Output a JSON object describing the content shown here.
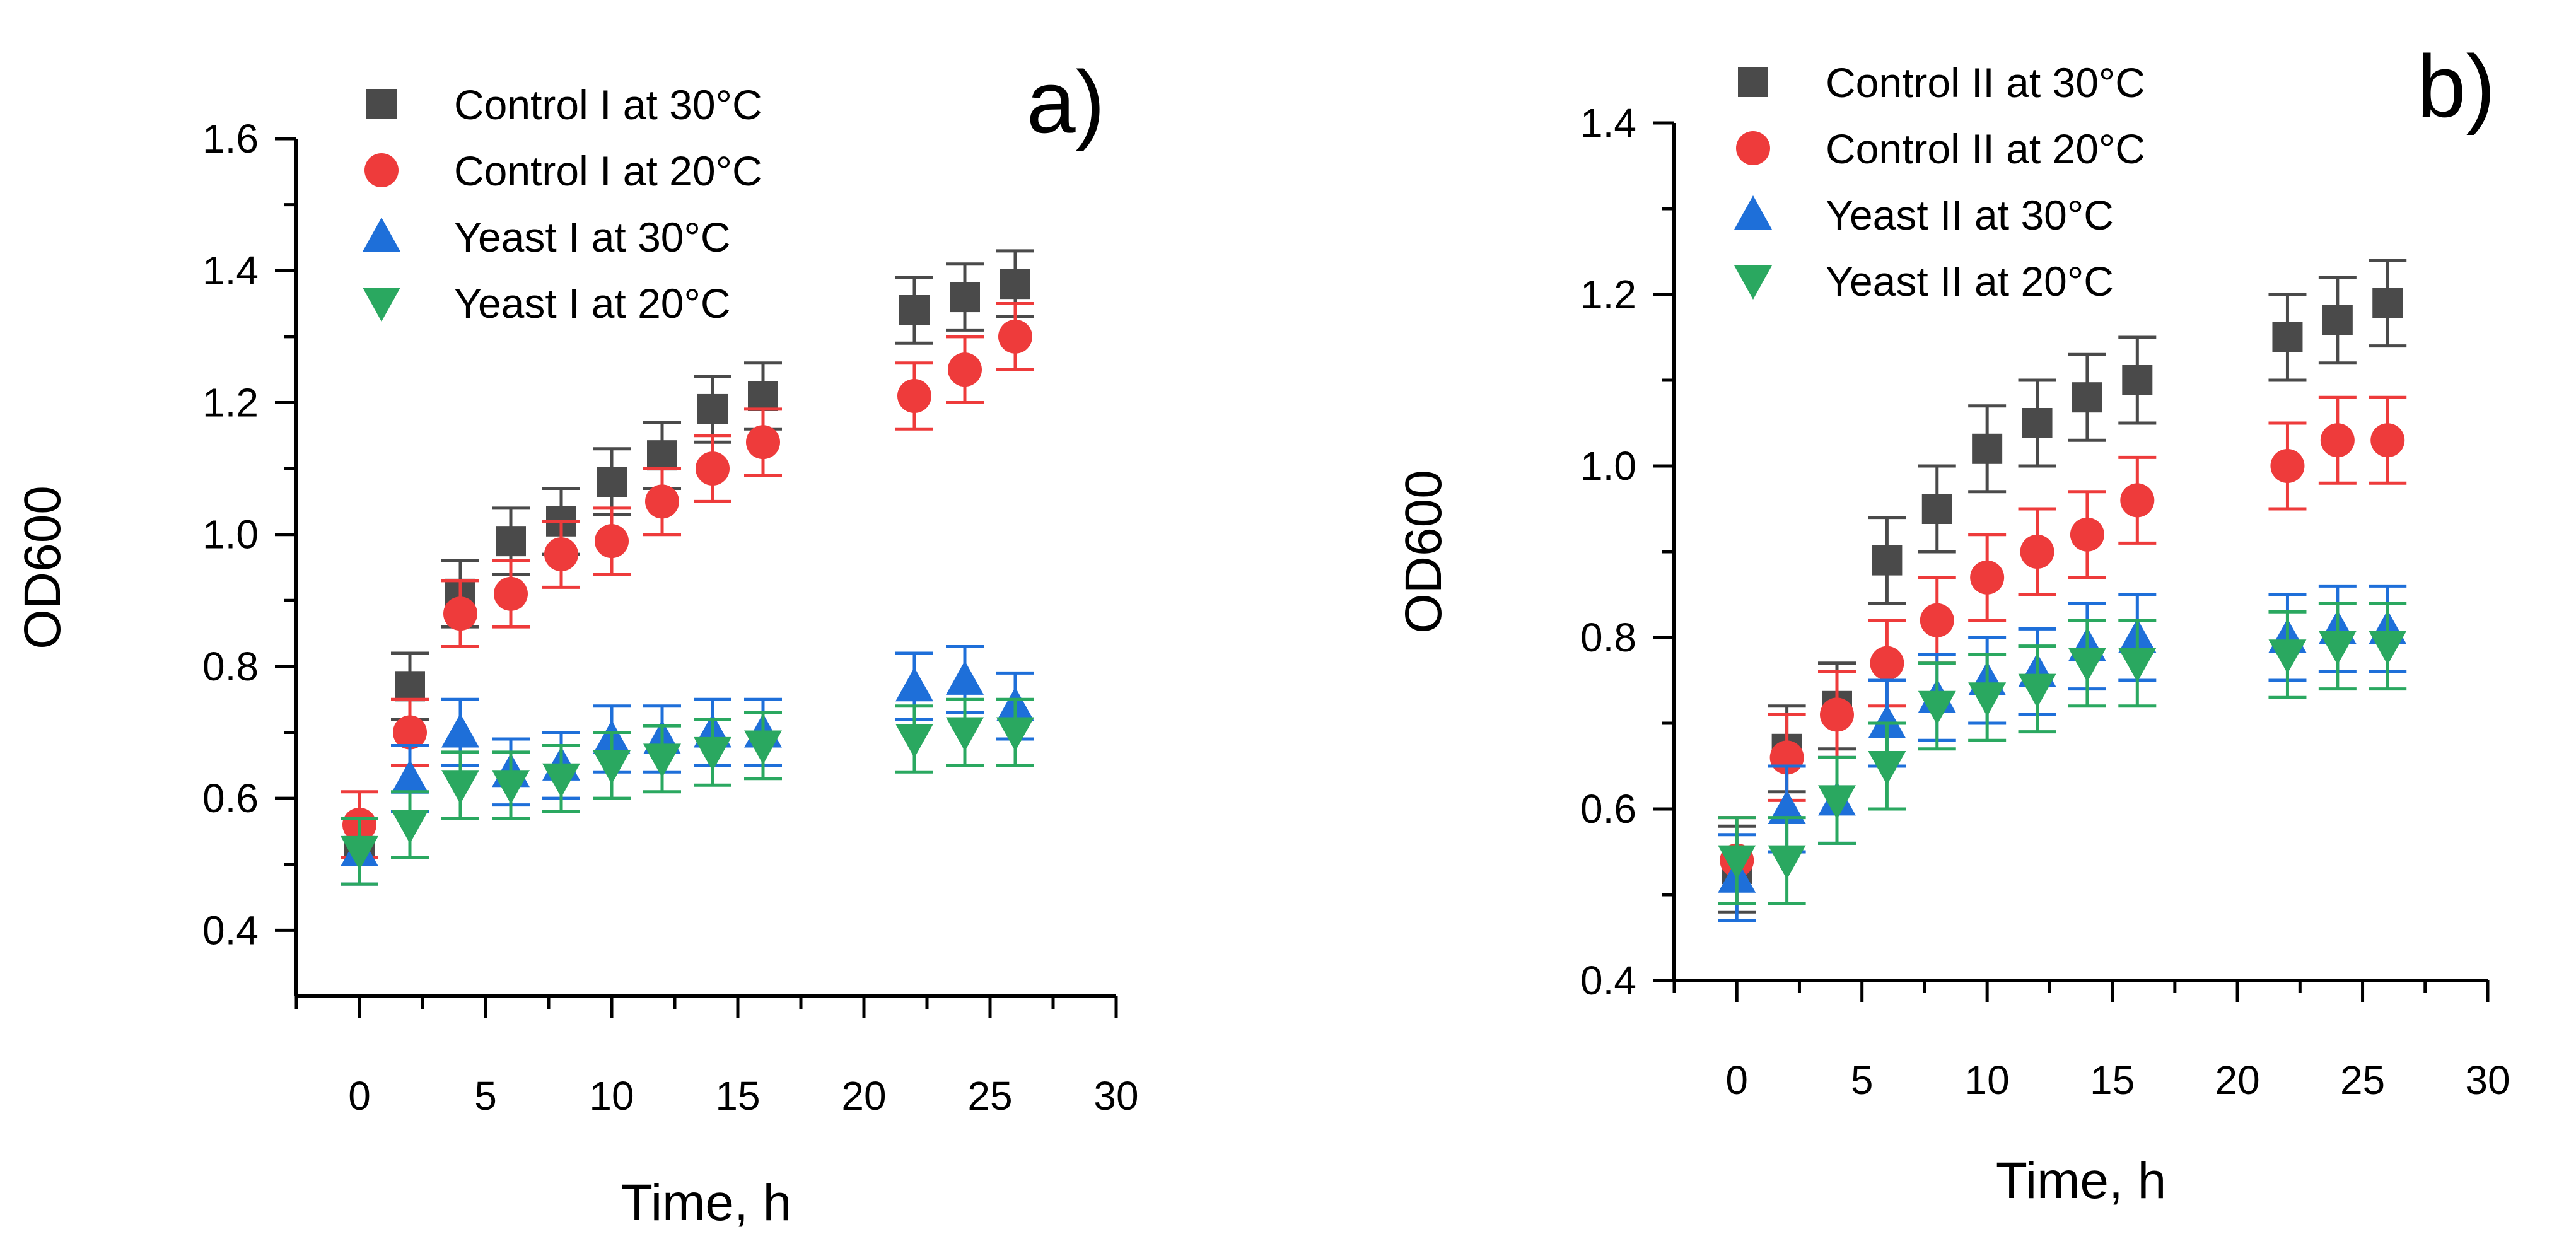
{
  "chart_data": [
    {
      "type": "scatter",
      "panel_label": "a)",
      "xlabel": "Time, h",
      "ylabel": "OD600",
      "xlim": [
        -2.5,
        30
      ],
      "ylim": [
        0.3,
        1.6
      ],
      "xticks": [
        0,
        5,
        10,
        15,
        20,
        25,
        30
      ],
      "xtick_labels": [
        "0",
        "5",
        "10",
        "15",
        "20",
        "25",
        "30"
      ],
      "yticks": [
        0.4,
        0.6,
        0.8,
        1.0,
        1.2,
        1.4,
        1.6
      ],
      "ytick_labels": [
        "0.4",
        "0.6",
        "0.8",
        "1.0",
        "1.2",
        "1.4",
        "1.6"
      ],
      "legend_position": "top-left",
      "series": [
        {
          "name": "Control I at 30°C",
          "marker": "square",
          "color": "#4a4a4a",
          "x": [
            0,
            2,
            4,
            6,
            8,
            10,
            12,
            14,
            16,
            22,
            24,
            26
          ],
          "y": [
            0.52,
            0.77,
            0.91,
            0.99,
            1.02,
            1.08,
            1.12,
            1.19,
            1.21,
            1.34,
            1.36,
            1.38
          ],
          "err": [
            0.05,
            0.05,
            0.05,
            0.05,
            0.05,
            0.05,
            0.05,
            0.05,
            0.05,
            0.05,
            0.05,
            0.05
          ]
        },
        {
          "name": "Control I at 20°C",
          "marker": "circle",
          "color": "#ee3b3b",
          "x": [
            0,
            2,
            4,
            6,
            8,
            10,
            12,
            14,
            16,
            22,
            24,
            26
          ],
          "y": [
            0.56,
            0.7,
            0.88,
            0.91,
            0.97,
            0.99,
            1.05,
            1.1,
            1.14,
            1.21,
            1.25,
            1.3
          ],
          "err": [
            0.05,
            0.05,
            0.05,
            0.05,
            0.05,
            0.05,
            0.05,
            0.05,
            0.05,
            0.05,
            0.05,
            0.05
          ]
        },
        {
          "name": "Yeast I at 30°C",
          "marker": "triangle-up",
          "color": "#1e6fd9",
          "x": [
            0,
            2,
            4,
            6,
            8,
            10,
            12,
            14,
            16,
            22,
            24,
            26
          ],
          "y": [
            0.52,
            0.63,
            0.7,
            0.64,
            0.65,
            0.69,
            0.69,
            0.7,
            0.7,
            0.77,
            0.78,
            0.74
          ],
          "err": [
            0.05,
            0.05,
            0.05,
            0.05,
            0.05,
            0.05,
            0.05,
            0.05,
            0.05,
            0.05,
            0.05,
            0.05
          ]
        },
        {
          "name": "Yeast I at 20°C",
          "marker": "triangle-down",
          "color": "#2aa860",
          "x": [
            0,
            2,
            4,
            6,
            8,
            10,
            12,
            14,
            16,
            22,
            24,
            26
          ],
          "y": [
            0.52,
            0.56,
            0.62,
            0.62,
            0.63,
            0.65,
            0.66,
            0.67,
            0.68,
            0.69,
            0.7,
            0.7
          ],
          "err": [
            0.05,
            0.05,
            0.05,
            0.05,
            0.05,
            0.05,
            0.05,
            0.05,
            0.05,
            0.05,
            0.05,
            0.05
          ]
        }
      ]
    },
    {
      "type": "scatter",
      "panel_label": "b)",
      "xlabel": "Time, h",
      "ylabel": "OD600",
      "xlim": [
        -2.5,
        30
      ],
      "ylim": [
        0.4,
        1.4
      ],
      "xticks": [
        0,
        5,
        10,
        15,
        20,
        25,
        30
      ],
      "xtick_labels": [
        "0",
        "5",
        "10",
        "15",
        "20",
        "25",
        "30"
      ],
      "yticks": [
        0.4,
        0.6,
        0.8,
        1.0,
        1.2,
        1.4
      ],
      "ytick_labels": [
        "0.4",
        "0.6",
        "0.8",
        "1.0",
        "1.2",
        "1.4"
      ],
      "legend_position": "top-left",
      "series": [
        {
          "name": "Control II at 30°C",
          "marker": "square",
          "color": "#4a4a4a",
          "x": [
            0,
            2,
            4,
            6,
            8,
            10,
            12,
            14,
            16,
            22,
            24,
            26
          ],
          "y": [
            0.53,
            0.67,
            0.72,
            0.89,
            0.95,
            1.02,
            1.05,
            1.08,
            1.1,
            1.15,
            1.17,
            1.19
          ],
          "err": [
            0.05,
            0.05,
            0.05,
            0.05,
            0.05,
            0.05,
            0.05,
            0.05,
            0.05,
            0.05,
            0.05,
            0.05
          ]
        },
        {
          "name": "Control II at 20°C",
          "marker": "circle",
          "color": "#ee3b3b",
          "x": [
            0,
            2,
            4,
            6,
            8,
            10,
            12,
            14,
            16,
            22,
            24,
            26
          ],
          "y": [
            0.54,
            0.66,
            0.71,
            0.77,
            0.82,
            0.87,
            0.9,
            0.92,
            0.96,
            1.0,
            1.03,
            1.03
          ],
          "err": [
            0.05,
            0.05,
            0.05,
            0.05,
            0.05,
            0.05,
            0.05,
            0.05,
            0.05,
            0.05,
            0.05,
            0.05
          ]
        },
        {
          "name": "Yeast II at 30°C",
          "marker": "triangle-up",
          "color": "#1e6fd9",
          "x": [
            0,
            2,
            4,
            6,
            8,
            10,
            12,
            14,
            16,
            22,
            24,
            26
          ],
          "y": [
            0.52,
            0.6,
            0.61,
            0.7,
            0.73,
            0.75,
            0.76,
            0.79,
            0.8,
            0.8,
            0.81,
            0.81
          ],
          "err": [
            0.05,
            0.05,
            0.05,
            0.05,
            0.05,
            0.05,
            0.05,
            0.05,
            0.05,
            0.05,
            0.05,
            0.05
          ]
        },
        {
          "name": "Yeast II at 20°C",
          "marker": "triangle-down",
          "color": "#2aa860",
          "x": [
            0,
            2,
            4,
            6,
            8,
            10,
            12,
            14,
            16,
            22,
            24,
            26
          ],
          "y": [
            0.54,
            0.54,
            0.61,
            0.65,
            0.72,
            0.73,
            0.74,
            0.77,
            0.77,
            0.78,
            0.79,
            0.79
          ],
          "err": [
            0.05,
            0.05,
            0.05,
            0.05,
            0.05,
            0.05,
            0.05,
            0.05,
            0.05,
            0.05,
            0.05,
            0.05
          ]
        }
      ]
    }
  ]
}
